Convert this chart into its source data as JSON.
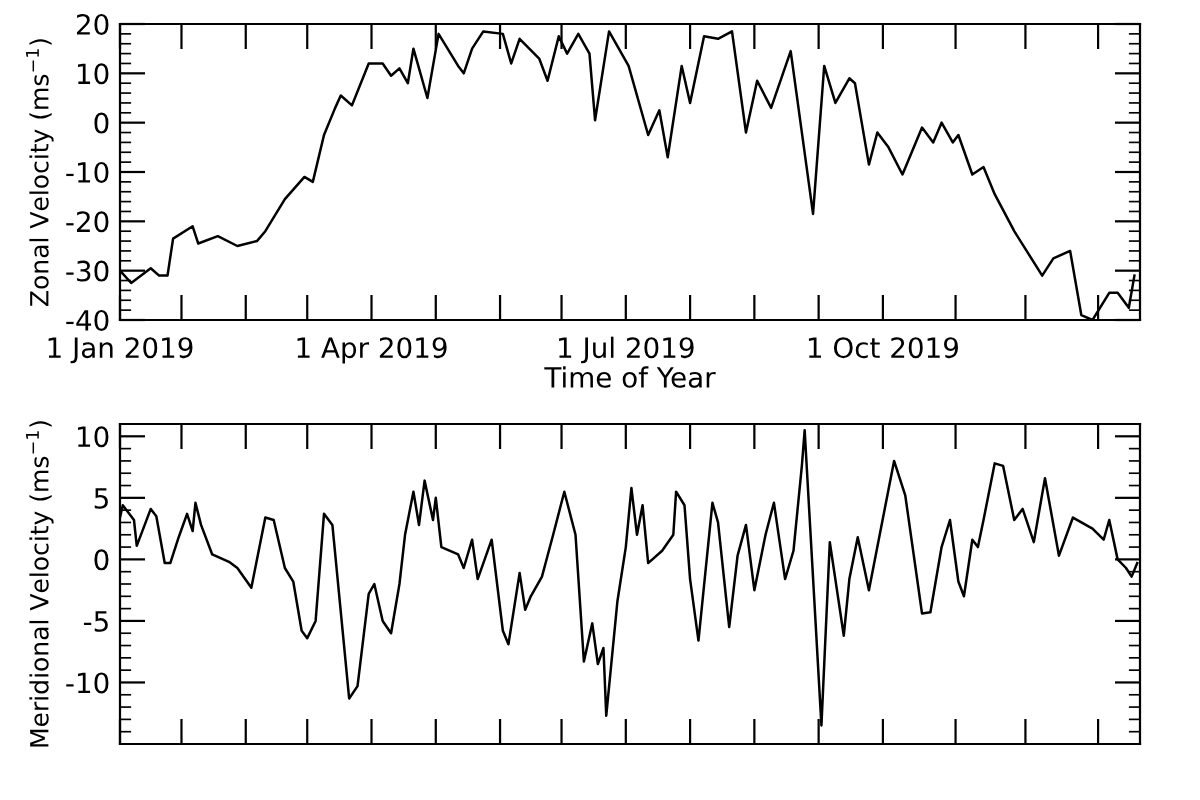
{
  "chart_data": [
    {
      "type": "line",
      "xlabel": "Time of Year",
      "ylabel": "Zonal Velocity (ms$^{−1}$)",
      "xlim": [
        "2019-01-01",
        "2020-01-01"
      ],
      "ylim": [
        -40,
        20
      ],
      "yticks": [
        -40,
        -30,
        -20,
        -10,
        0,
        10,
        20
      ],
      "xticks": [
        {
          "value": "2019-01-01",
          "label": "1 Jan 2019"
        },
        {
          "value": "2019-01-23",
          "label": null
        },
        {
          "value": "2019-02-15",
          "label": null
        },
        {
          "value": "2019-03-09",
          "label": null
        },
        {
          "value": "2019-04-01",
          "label": "1 Apr 2019"
        },
        {
          "value": "2019-04-24",
          "label": null
        },
        {
          "value": "2019-05-17",
          "label": null
        },
        {
          "value": "2019-06-08",
          "label": null
        },
        {
          "value": "2019-07-01",
          "label": "1 Jul 2019"
        },
        {
          "value": "2019-07-24",
          "label": null
        },
        {
          "value": "2019-08-16",
          "label": null
        },
        {
          "value": "2019-09-08",
          "label": null
        },
        {
          "value": "2019-10-01",
          "label": "1 Oct 2019"
        },
        {
          "value": "2019-10-27",
          "label": null
        },
        {
          "value": "2019-11-21",
          "label": null
        },
        {
          "value": "2019-12-17",
          "label": null
        }
      ],
      "grid": false,
      "legend": false,
      "marker": "none",
      "line_style": "solid",
      "x": [
        "2019-01-01",
        "2019-01-05",
        "2019-01-12",
        "2019-01-15",
        "2019-01-18",
        "2019-01-20",
        "2019-01-27",
        "2019-01-29",
        "2019-02-05",
        "2019-02-12",
        "2019-02-19",
        "2019-02-22",
        "2019-03-01",
        "2019-03-08",
        "2019-03-11",
        "2019-03-15",
        "2019-03-19",
        "2019-03-21",
        "2019-03-25",
        "2019-03-31",
        "2019-04-05",
        "2019-04-08",
        "2019-04-11",
        "2019-04-14",
        "2019-04-16",
        "2019-04-21",
        "2019-04-25",
        "2019-05-02",
        "2019-05-04",
        "2019-05-07",
        "2019-05-11",
        "2019-05-18",
        "2019-05-21",
        "2019-05-24",
        "2019-05-31",
        "2019-06-03",
        "2019-06-07",
        "2019-06-10",
        "2019-06-14",
        "2019-06-18",
        "2019-06-20",
        "2019-06-25",
        "2019-07-02",
        "2019-07-09",
        "2019-07-13",
        "2019-07-16",
        "2019-07-21",
        "2019-07-24",
        "2019-07-29",
        "2019-08-03",
        "2019-08-08",
        "2019-08-13",
        "2019-08-17",
        "2019-08-22",
        "2019-08-29",
        "2019-09-06",
        "2019-09-10",
        "2019-09-14",
        "2019-09-19",
        "2019-09-21",
        "2019-09-26",
        "2019-09-29",
        "2019-10-03",
        "2019-10-08",
        "2019-10-15",
        "2019-10-19",
        "2019-10-22",
        "2019-10-26",
        "2019-10-28",
        "2019-11-02",
        "2019-11-06",
        "2019-11-10",
        "2019-11-17",
        "2019-11-27",
        "2019-12-01",
        "2019-12-07",
        "2019-12-11",
        "2019-12-15",
        "2019-12-21",
        "2019-12-24",
        "2019-12-28",
        "2019-12-30"
      ],
      "series": [
        {
          "color": "#000000",
          "values": [
            -30,
            -32.5,
            -29.5,
            -31,
            -31,
            -23.5,
            -21,
            -24.5,
            -23,
            -25,
            -24,
            -22,
            -15.5,
            -11,
            -12,
            -2.5,
            3,
            5.5,
            3.5,
            12,
            12,
            9.5,
            11,
            8,
            15,
            5,
            18,
            11.5,
            10,
            15,
            18.5,
            18,
            12,
            17,
            13,
            8.5,
            17.5,
            14,
            18,
            14,
            0.5,
            18.5,
            11.5,
            -2.5,
            2.5,
            -7,
            11.5,
            4,
            17.5,
            17,
            18.5,
            -2,
            8.5,
            3,
            14.5,
            -18.5,
            11.5,
            4,
            9,
            8,
            -8.5,
            -2,
            -5,
            -10.5,
            -1,
            -4,
            0,
            -4,
            -2.5,
            -10.5,
            -9,
            -14.5,
            -22,
            -31,
            -27.5,
            -26,
            -39,
            -40,
            -34.5,
            -34.5,
            -37.5,
            -31
          ]
        }
      ]
    },
    {
      "type": "line",
      "ylabel": "Meridional Velocity (ms$^{−1}$)",
      "xlim": [
        "2019-01-01",
        "2020-01-01"
      ],
      "ylim": [
        -15,
        11
      ],
      "yticks": [
        -10,
        -5,
        0,
        5,
        10
      ],
      "tick_labels": "y",
      "xticks": [
        {
          "value": "2019-01-01",
          "label": null
        },
        {
          "value": "2019-01-23",
          "label": null
        },
        {
          "value": "2019-02-15",
          "label": null
        },
        {
          "value": "2019-03-09",
          "label": null
        },
        {
          "value": "2019-04-01",
          "label": null
        },
        {
          "value": "2019-04-24",
          "label": null
        },
        {
          "value": "2019-05-17",
          "label": null
        },
        {
          "value": "2019-06-08",
          "label": null
        },
        {
          "value": "2019-07-01",
          "label": null
        },
        {
          "value": "2019-07-24",
          "label": null
        },
        {
          "value": "2019-08-16",
          "label": null
        },
        {
          "value": "2019-09-08",
          "label": null
        },
        {
          "value": "2019-10-01",
          "label": null
        },
        {
          "value": "2019-10-27",
          "label": null
        },
        {
          "value": "2019-11-21",
          "label": null
        },
        {
          "value": "2019-12-17",
          "label": null
        }
      ],
      "grid": false,
      "legend": false,
      "marker": "none",
      "line_style": "solid",
      "x": [
        "2019-01-01",
        "2019-01-02",
        "2019-01-06",
        "2019-01-07",
        "2019-01-12",
        "2019-01-14",
        "2019-01-17",
        "2019-01-19",
        "2019-01-22",
        "2019-01-25",
        "2019-01-27",
        "2019-01-28",
        "2019-01-30",
        "2019-02-03",
        "2019-02-09",
        "2019-02-12",
        "2019-02-17",
        "2019-02-22",
        "2019-02-25",
        "2019-03-01",
        "2019-03-04",
        "2019-03-07",
        "2019-03-09",
        "2019-03-12",
        "2019-03-15",
        "2019-03-18",
        "2019-03-24",
        "2019-03-27",
        "2019-03-31",
        "2019-04-02",
        "2019-04-05",
        "2019-04-08",
        "2019-04-11",
        "2019-04-13",
        "2019-04-16",
        "2019-04-18",
        "2019-04-20",
        "2019-04-23",
        "2019-04-24",
        "2019-04-26",
        "2019-05-02",
        "2019-05-04",
        "2019-05-07",
        "2019-05-09",
        "2019-05-14",
        "2019-05-18",
        "2019-05-20",
        "2019-05-24",
        "2019-05-26",
        "2019-05-28",
        "2019-06-01",
        "2019-06-05",
        "2019-06-09",
        "2019-06-13",
        "2019-06-16",
        "2019-06-19",
        "2019-06-21",
        "2019-06-23",
        "2019-06-24",
        "2019-06-28",
        "2019-07-01",
        "2019-07-03",
        "2019-07-05",
        "2019-07-07",
        "2019-07-09",
        "2019-07-14",
        "2019-07-18",
        "2019-07-19",
        "2019-07-22",
        "2019-07-24",
        "2019-07-27",
        "2019-08-01",
        "2019-08-03",
        "2019-08-07",
        "2019-08-10",
        "2019-08-13",
        "2019-08-16",
        "2019-08-20",
        "2019-08-23",
        "2019-08-27",
        "2019-08-30",
        "2019-09-02",
        "2019-09-03",
        "2019-09-09",
        "2019-09-12",
        "2019-09-17",
        "2019-09-19",
        "2019-09-22",
        "2019-09-26",
        "2019-09-29",
        "2019-10-05",
        "2019-10-09",
        "2019-10-15",
        "2019-10-18",
        "2019-10-22",
        "2019-10-25",
        "2019-10-28",
        "2019-10-30",
        "2019-11-02",
        "2019-11-04",
        "2019-11-06",
        "2019-11-10",
        "2019-11-13",
        "2019-11-17",
        "2019-11-20",
        "2019-11-24",
        "2019-11-28",
        "2019-12-03",
        "2019-12-08",
        "2019-12-15",
        "2019-12-19",
        "2019-12-21",
        "2019-12-24",
        "2019-12-27",
        "2019-12-29",
        "2019-12-31"
      ],
      "series": [
        {
          "color": "#000000",
          "values": [
            3.4,
            4.4,
            3.2,
            1.1,
            4.1,
            3.5,
            -0.3,
            -0.3,
            1.8,
            3.7,
            2.3,
            4.6,
            2.8,
            0.4,
            -0.2,
            -0.7,
            -2.3,
            3.4,
            3.2,
            -0.7,
            -1.8,
            -5.8,
            -6.4,
            -5,
            3.7,
            2.8,
            -11.3,
            -10.3,
            -2.8,
            -2,
            -5,
            -6,
            -2,
            2,
            5.5,
            2.8,
            6.4,
            3.2,
            5,
            1,
            0.4,
            -0.7,
            1.6,
            -1.6,
            1.6,
            -5.8,
            -6.9,
            -1.1,
            -4.1,
            -3,
            -1.4,
            2,
            5.5,
            2,
            -8.3,
            -5.2,
            -8.5,
            -7.2,
            -12.7,
            -3.4,
            1,
            5.8,
            2,
            4.4,
            -0.3,
            0.7,
            2,
            5.5,
            4.4,
            -1.6,
            -6.6,
            4.6,
            3,
            -5.5,
            0.3,
            2.8,
            -2.5,
            2,
            4.6,
            -1.6,
            0.7,
            7.6,
            10.5,
            -13.5,
            1.4,
            -6.2,
            -1.6,
            1.8,
            -2.5,
            1,
            8,
            5.2,
            -4.4,
            -4.3,
            1,
            3.2,
            -1.8,
            -3,
            1.6,
            1,
            3.2,
            7.8,
            7.6,
            3.2,
            4.1,
            1.4,
            6.6,
            0.3,
            3.4,
            2.5,
            1.6,
            3.2,
            0,
            -0.7,
            -1.4,
            -0.3
          ]
        }
      ]
    }
  ]
}
